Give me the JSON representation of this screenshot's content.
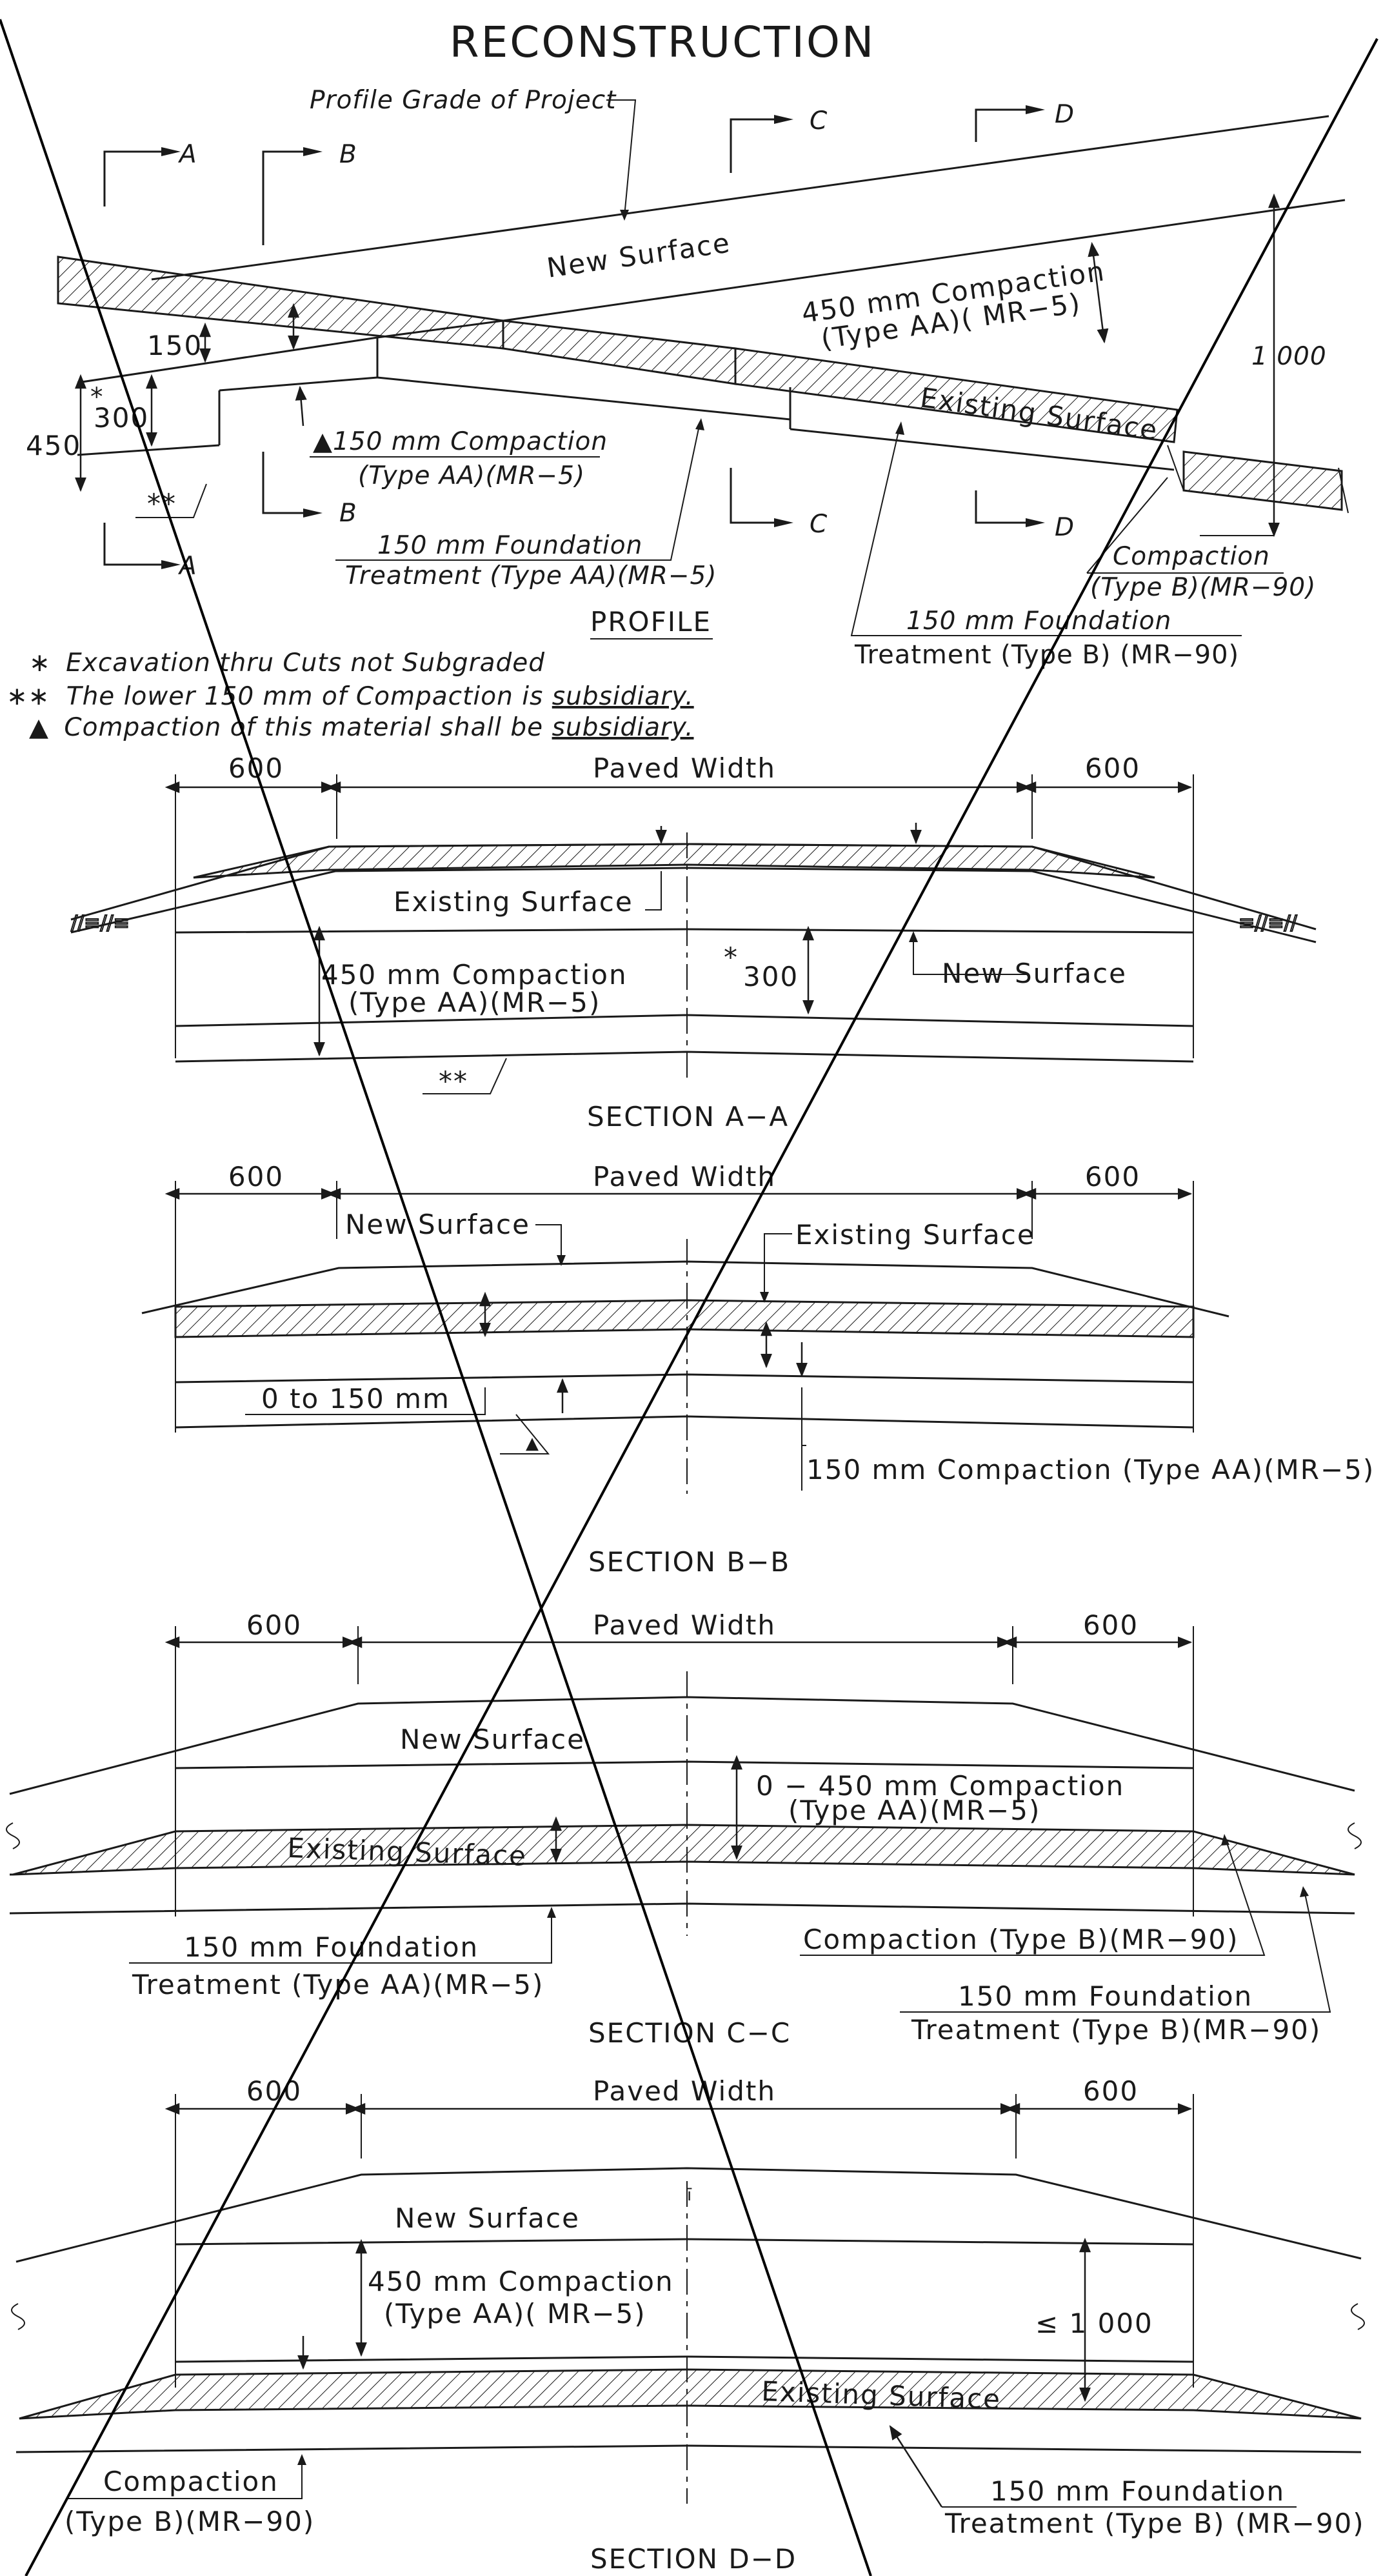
{
  "title": "RECONSTRUCTION",
  "profile": {
    "heading": "PROFILE",
    "grade_label": "Profile Grade of Project",
    "cut_a": "A",
    "cut_b": "B",
    "cut_c": "C",
    "cut_d": "D",
    "new_surface": "New Surface",
    "compaction_450_l1": "450  mm Compaction",
    "compaction_450_l2": "(Type  AA)( MR−5)",
    "existing_surface": "Existing Surface",
    "dim_1000": "1 000",
    "dim_150": "150",
    "dim_300": "300",
    "dim_450": "450",
    "star": "*",
    "dstar": "**",
    "compaction_150_l1": "▲150 mm Compaction",
    "compaction_150_l2": "(Type AA)(MR−5)",
    "foundation_aa_l1": "150  mm Foundation",
    "foundation_aa_l2": "Treatment (Type AA)(MR−5)",
    "compaction_b_l1": "Compaction",
    "compaction_b_l2": "(Type B)(MR−90)",
    "foundation_b_l1": "150  mm Foundation",
    "foundation_b_l2": "Treatment (Type B) (MR−90)"
  },
  "notes": [
    {
      "symbol": "∗",
      "text": "Excavation thru Cuts not Subgraded"
    },
    {
      "symbol": "∗∗",
      "text": "The lower 150 mm of Compaction is ",
      "emph": "subsidiary."
    },
    {
      "symbol": "▲",
      "text": "Compaction of this material shall be ",
      "emph": "subsidiary."
    }
  ],
  "section_aa": {
    "heading": "SECTION  A−A",
    "dim_left": "600",
    "dim_right": "600",
    "paved_width": "Paved Width",
    "existing_surface": "Existing Surface",
    "compaction_l1": "450  mm Compaction",
    "compaction_l2": "(Type  AA)(MR−5)",
    "dim_300": "300",
    "star": "*",
    "new_surface": "New Surface",
    "dstar": "**"
  },
  "section_bb": {
    "heading": "SECTION  B−B",
    "dim_left": "600",
    "dim_right": "600",
    "paved_width": "Paved Width",
    "new_surface": "New Surface",
    "existing_surface": "Existing Surface",
    "range": "0  to  150  mm",
    "triangle": "▲",
    "compaction": "150  mm  Compaction  (Type  AA)(MR−5)"
  },
  "section_cc": {
    "heading": "SECTION  C−C",
    "dim_left": "600",
    "dim_right": "600",
    "paved_width": "Paved Width",
    "new_surface": "New Surface",
    "compaction_l1": "0  −  450  mm  Compaction",
    "compaction_l2": "(Type  AA)(MR−5)",
    "existing_surface": "Existing Surface",
    "foundation_aa_l1": "150  mm  Foundation",
    "foundation_aa_l2": "Treatment  (Type  AA)(MR−5)",
    "compaction_b": "Compaction  (Type  B)(MR−90)",
    "foundation_b_l1": "150  mm  Foundation",
    "foundation_b_l2": "Treatment  (Type  B)(MR−90)"
  },
  "section_dd": {
    "heading": "SECTION  D−D",
    "dim_left": "600",
    "dim_right": "600",
    "paved_width": "Paved Width",
    "new_surface": "New Surface",
    "compaction_l1": "450  mm  Compaction",
    "compaction_l2": "(Type  AA)(  MR−5)",
    "dim_1000": "≤ 1  000",
    "existing_surface": "Existing Surface",
    "compaction_b_l1": "Compaction",
    "compaction_b_l2": "(Type  B)(MR−90)",
    "foundation_b_l1": "150  mm  Foundation",
    "foundation_b_l2": "Treatment (Type  B)  (MR−90)"
  }
}
